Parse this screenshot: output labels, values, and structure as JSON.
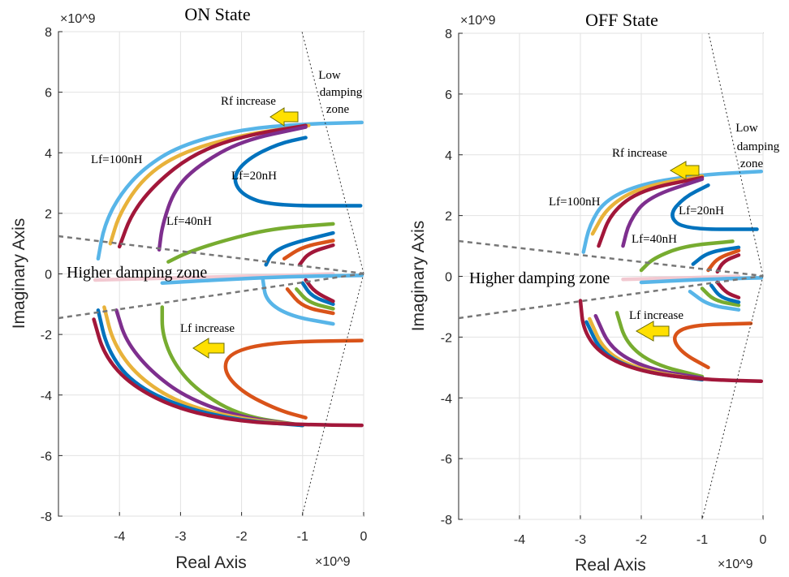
{
  "chart_data": [
    {
      "type": "scatter",
      "title": "ON State",
      "xlabel": "Real Axis",
      "ylabel": "Imaginary Axis",
      "x_exponent": "×10^9",
      "y_exponent": "×10^9",
      "xlim": [
        -5,
        0
      ],
      "ylim": [
        -8,
        8
      ],
      "xticks": [
        -4,
        -3,
        -2,
        -1,
        0
      ],
      "yticks": [
        -8,
        -6,
        -4,
        -2,
        0,
        2,
        4,
        6,
        8
      ],
      "grid": true,
      "annotations": {
        "rf_increase": "Rf increase",
        "low_damping": [
          "Low",
          "damping",
          "zone"
        ],
        "lf100": "Lf=100nH",
        "lf20": "Lf=20nH",
        "lf40": "Lf=40nH",
        "higher_damping": "Higher damping zone",
        "lf_increase": "Lf increase"
      },
      "series": [
        {
          "color": "#58b5e8",
          "points": [
            [
              -0.03,
              5.0
            ],
            [
              -1,
              4.95
            ],
            [
              -2,
              4.78
            ],
            [
              -3,
              4.25
            ],
            [
              -3.6,
              3.5
            ],
            [
              -4.0,
              2.6
            ],
            [
              -4.25,
              1.6
            ],
            [
              -4.35,
              0.5
            ]
          ]
        },
        {
          "color": "#e8b23a",
          "points": [
            [
              -0.9,
              4.9
            ],
            [
              -2,
              4.6
            ],
            [
              -3,
              4.0
            ],
            [
              -3.6,
              3.2
            ],
            [
              -4.0,
              2.0
            ],
            [
              -4.15,
              1.0
            ]
          ]
        },
        {
          "color": "#a2173a",
          "points": [
            [
              -0.95,
              4.9
            ],
            [
              -2,
              4.55
            ],
            [
              -2.8,
              3.95
            ],
            [
              -3.4,
              3.0
            ],
            [
              -3.8,
              2.0
            ],
            [
              -4.0,
              0.9
            ]
          ]
        },
        {
          "color": "#7e2f8e",
          "points": [
            [
              -0.95,
              4.85
            ],
            [
              -2,
              4.4
            ],
            [
              -2.7,
              3.6
            ],
            [
              -3.1,
              2.8
            ],
            [
              -3.3,
              1.6
            ],
            [
              -3.35,
              0.8
            ]
          ]
        },
        {
          "color": "#0072bd",
          "points": [
            [
              -0.05,
              2.25
            ],
            [
              -1.5,
              2.25
            ],
            [
              -2.0,
              2.6
            ],
            [
              -2.15,
              3.2
            ],
            [
              -1.9,
              3.8
            ],
            [
              -1.4,
              4.3
            ],
            [
              -0.95,
              4.5
            ]
          ]
        },
        {
          "color": "#77ac30",
          "points": [
            [
              -0.5,
              1.65
            ],
            [
              -1.5,
              1.5
            ],
            [
              -2.3,
              1.1
            ],
            [
              -2.9,
              0.7
            ],
            [
              -3.2,
              0.4
            ]
          ]
        },
        {
          "color": "#0072bd",
          "points": [
            [
              -0.5,
              1.35
            ],
            [
              -1.2,
              1.0
            ],
            [
              -1.5,
              0.7
            ],
            [
              -1.6,
              0.3
            ]
          ]
        },
        {
          "color": "#d95319",
          "points": [
            [
              -0.5,
              1.1
            ],
            [
              -1.0,
              0.9
            ],
            [
              -1.3,
              0.5
            ]
          ]
        },
        {
          "color": "#a2173a",
          "points": [
            [
              -0.5,
              0.95
            ],
            [
              -0.9,
              0.7
            ],
            [
              -1.05,
              0.3
            ]
          ]
        },
        {
          "color": "#f2c9d1",
          "points": [
            [
              -4.4,
              -0.2
            ],
            [
              -2.5,
              -0.1
            ],
            [
              -1.2,
              -0.05
            ],
            [
              -0.5,
              0
            ]
          ]
        },
        {
          "color": "#58b5e8",
          "points": [
            [
              -0.03,
              -0.05
            ],
            [
              -1.5,
              -0.1
            ],
            [
              -3.3,
              -0.3
            ]
          ]
        },
        {
          "color": "#58b5e8",
          "points": [
            [
              -0.5,
              -1.65
            ],
            [
              -1.2,
              -1.4
            ],
            [
              -1.6,
              -0.9
            ],
            [
              -1.65,
              -0.2
            ]
          ]
        },
        {
          "color": "#d95319",
          "points": [
            [
              -0.5,
              -1.3
            ],
            [
              -1.0,
              -1.1
            ],
            [
              -1.25,
              -0.5
            ]
          ]
        },
        {
          "color": "#77ac30",
          "points": [
            [
              -0.5,
              -1.15
            ],
            [
              -0.9,
              -0.95
            ],
            [
              -1.1,
              -0.5
            ]
          ]
        },
        {
          "color": "#0072bd",
          "points": [
            [
              -0.5,
              -1.0
            ],
            [
              -0.85,
              -0.75
            ],
            [
              -1.0,
              -0.3
            ]
          ]
        },
        {
          "color": "#a2173a",
          "points": [
            [
              -0.5,
              -0.9
            ],
            [
              -0.8,
              -0.6
            ],
            [
              -0.95,
              -0.2
            ]
          ]
        },
        {
          "color": "#77ac30",
          "points": [
            [
              -1.0,
              -5.0
            ],
            [
              -2,
              -4.7
            ],
            [
              -2.7,
              -3.9
            ],
            [
              -3.1,
              -3.0
            ],
            [
              -3.3,
              -2.0
            ],
            [
              -3.3,
              -1.1
            ]
          ]
        },
        {
          "color": "#7e2f8e",
          "points": [
            [
              -1.0,
              -5.0
            ],
            [
              -2,
              -4.75
            ],
            [
              -2.9,
              -4.1
            ],
            [
              -3.5,
              -3.2
            ],
            [
              -3.9,
              -2.2
            ],
            [
              -4.05,
              -1.2
            ]
          ]
        },
        {
          "color": "#e8b23a",
          "points": [
            [
              -1.0,
              -5.0
            ],
            [
              -2,
              -4.8
            ],
            [
              -3,
              -4.3
            ],
            [
              -3.7,
              -3.4
            ],
            [
              -4.1,
              -2.3
            ],
            [
              -4.25,
              -1.1
            ]
          ]
        },
        {
          "color": "#0072bd",
          "points": [
            [
              -1.0,
              -5.0
            ],
            [
              -2,
              -4.85
            ],
            [
              -3,
              -4.4
            ],
            [
              -3.8,
              -3.6
            ],
            [
              -4.2,
              -2.5
            ],
            [
              -4.35,
              -1.2
            ]
          ]
        },
        {
          "color": "#a2173a",
          "points": [
            [
              -0.03,
              -5.0
            ],
            [
              -1,
              -4.98
            ],
            [
              -2,
              -4.88
            ],
            [
              -3,
              -4.5
            ],
            [
              -3.8,
              -3.7
            ],
            [
              -4.25,
              -2.7
            ],
            [
              -4.42,
              -1.5
            ]
          ]
        },
        {
          "color": "#d95319",
          "points": [
            [
              -0.03,
              -2.2
            ],
            [
              -1.5,
              -2.25
            ],
            [
              -2.2,
              -2.6
            ],
            [
              -2.3,
              -3.2
            ],
            [
              -2.0,
              -3.9
            ],
            [
              -1.4,
              -4.5
            ],
            [
              -0.95,
              -4.75
            ]
          ]
        }
      ]
    },
    {
      "type": "scatter",
      "title": "OFF State",
      "xlabel": "Real Axis",
      "ylabel": "Imaginary Axis",
      "x_exponent": "×10^9",
      "y_exponent": "×10^9",
      "xlim": [
        -5,
        0
      ],
      "ylim": [
        -8,
        8
      ],
      "xticks": [
        -4,
        -3,
        -2,
        -1,
        0
      ],
      "yticks": [
        -8,
        -6,
        -4,
        -2,
        0,
        2,
        4,
        6,
        8
      ],
      "grid": true,
      "annotations": {
        "rf_increase": "Rf increase",
        "low_damping": [
          "Low",
          "damping",
          "zone"
        ],
        "lf100": "Lf=100nH",
        "lf20": "Lf=20nH",
        "lf40": "Lf=40nH",
        "higher_damping": "Higher damping zone",
        "lf_increase": "Lf increase"
      },
      "series": [
        {
          "color": "#58b5e8",
          "points": [
            [
              -0.03,
              3.45
            ],
            [
              -1,
              3.35
            ],
            [
              -2,
              3.05
            ],
            [
              -2.6,
              2.5
            ],
            [
              -2.85,
              1.7
            ],
            [
              -2.95,
              0.8
            ]
          ]
        },
        {
          "color": "#e8b23a",
          "points": [
            [
              -1,
              3.3
            ],
            [
              -2,
              2.95
            ],
            [
              -2.55,
              2.3
            ],
            [
              -2.8,
              1.4
            ]
          ]
        },
        {
          "color": "#a2173a",
          "points": [
            [
              -1,
              3.25
            ],
            [
              -2,
              2.85
            ],
            [
              -2.5,
              2.1
            ],
            [
              -2.7,
              1.0
            ]
          ]
        },
        {
          "color": "#7e2f8e",
          "points": [
            [
              -1,
              3.2
            ],
            [
              -1.9,
              2.6
            ],
            [
              -2.2,
              1.8
            ],
            [
              -2.3,
              1.0
            ]
          ]
        },
        {
          "color": "#0072bd",
          "points": [
            [
              -0.1,
              1.55
            ],
            [
              -1.3,
              1.55
            ],
            [
              -1.55,
              2.0
            ],
            [
              -1.3,
              2.6
            ],
            [
              -0.9,
              3.0
            ]
          ]
        },
        {
          "color": "#77ac30",
          "points": [
            [
              -0.5,
              1.15
            ],
            [
              -1.3,
              1.0
            ],
            [
              -1.8,
              0.6
            ],
            [
              -2.0,
              0.2
            ]
          ]
        },
        {
          "color": "#0072bd",
          "points": [
            [
              -0.4,
              0.95
            ],
            [
              -0.9,
              0.8
            ],
            [
              -1.15,
              0.4
            ]
          ]
        },
        {
          "color": "#d95319",
          "points": [
            [
              -0.4,
              0.85
            ],
            [
              -0.75,
              0.6
            ],
            [
              -0.9,
              0.2
            ]
          ]
        },
        {
          "color": "#a2173a",
          "points": [
            [
              -0.4,
              0.7
            ],
            [
              -0.65,
              0.5
            ],
            [
              -0.75,
              0.15
            ]
          ]
        },
        {
          "color": "#f2c9d1",
          "points": [
            [
              -2.3,
              -0.1
            ],
            [
              -1.2,
              -0.05
            ],
            [
              -0.4,
              0
            ]
          ]
        },
        {
          "color": "#58b5e8",
          "points": [
            [
              -0.03,
              -0.05
            ],
            [
              -1.0,
              -0.1
            ],
            [
              -2.0,
              -0.2
            ]
          ]
        },
        {
          "color": "#58b5e8",
          "points": [
            [
              -0.4,
              -1.1
            ],
            [
              -0.9,
              -0.95
            ],
            [
              -1.2,
              -0.5
            ]
          ]
        },
        {
          "color": "#77ac30",
          "points": [
            [
              -0.4,
              -0.95
            ],
            [
              -0.8,
              -0.8
            ],
            [
              -1.0,
              -0.4
            ]
          ]
        },
        {
          "color": "#0072bd",
          "points": [
            [
              -0.4,
              -0.85
            ],
            [
              -0.7,
              -0.7
            ],
            [
              -0.85,
              -0.3
            ]
          ]
        },
        {
          "color": "#a2173a",
          "points": [
            [
              -0.4,
              -0.7
            ],
            [
              -0.6,
              -0.55
            ],
            [
              -0.75,
              -0.2
            ]
          ]
        },
        {
          "color": "#77ac30",
          "points": [
            [
              -1.0,
              -3.3
            ],
            [
              -1.8,
              -2.9
            ],
            [
              -2.25,
              -2.2
            ],
            [
              -2.4,
              -1.2
            ]
          ]
        },
        {
          "color": "#7e2f8e",
          "points": [
            [
              -1.0,
              -3.35
            ],
            [
              -1.9,
              -3.05
            ],
            [
              -2.5,
              -2.4
            ],
            [
              -2.75,
              -1.3
            ]
          ]
        },
        {
          "color": "#e8b23a",
          "points": [
            [
              -1.0,
              -3.4
            ],
            [
              -2.0,
              -3.1
            ],
            [
              -2.6,
              -2.5
            ],
            [
              -2.85,
              -1.4
            ]
          ]
        },
        {
          "color": "#0072bd",
          "points": [
            [
              -1.0,
              -3.4
            ],
            [
              -2.0,
              -3.15
            ],
            [
              -2.65,
              -2.55
            ],
            [
              -2.9,
              -1.5
            ]
          ]
        },
        {
          "color": "#a2173a",
          "points": [
            [
              -0.03,
              -3.45
            ],
            [
              -1,
              -3.4
            ],
            [
              -2,
              -3.15
            ],
            [
              -2.65,
              -2.6
            ],
            [
              -2.95,
              -1.8
            ],
            [
              -3.0,
              -0.8
            ]
          ]
        },
        {
          "color": "#d95319",
          "points": [
            [
              -0.2,
              -1.55
            ],
            [
              -1.2,
              -1.6
            ],
            [
              -1.5,
              -1.95
            ],
            [
              -1.35,
              -2.5
            ],
            [
              -0.9,
              -3.0
            ]
          ]
        }
      ]
    }
  ]
}
